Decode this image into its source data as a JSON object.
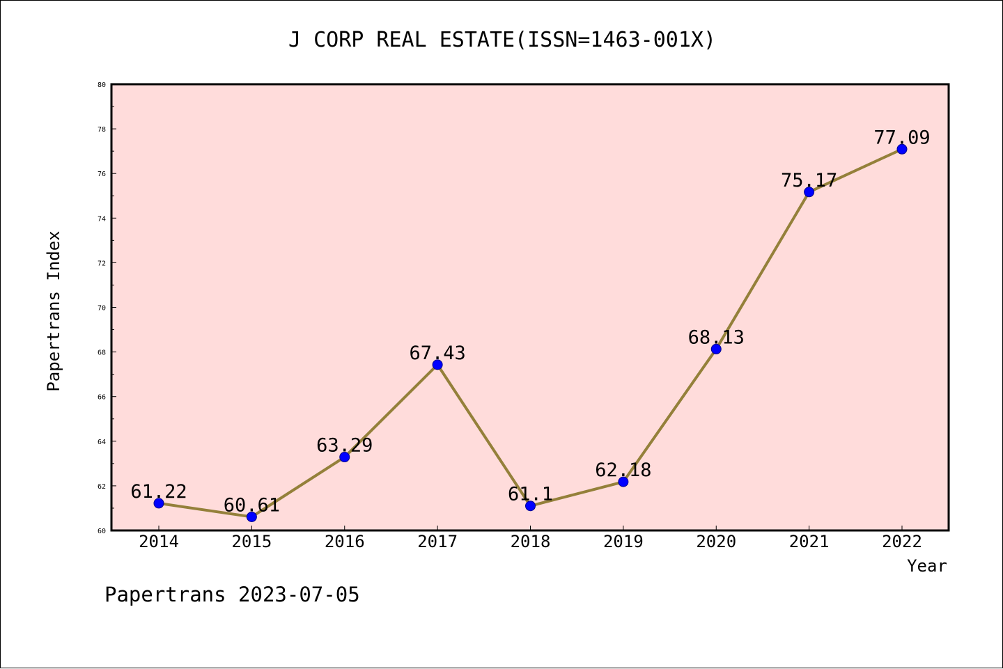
{
  "chart_data": {
    "type": "line",
    "title": "J CORP REAL ESTATE(ISSN=1463-001X)",
    "xlabel": "Year",
    "ylabel": "Papertrans Index",
    "categories": [
      "2014",
      "2015",
      "2016",
      "2017",
      "2018",
      "2019",
      "2020",
      "2021",
      "2022"
    ],
    "series": [
      {
        "values": [
          61.22,
          60.61,
          63.29,
          67.43,
          61.1,
          62.18,
          68.13,
          75.17,
          77.09
        ],
        "data_labels": [
          "61.22",
          "60.61",
          "63.29",
          "67.43",
          "61.1",
          "62.18",
          "68.13",
          "75.17",
          "77.09"
        ]
      }
    ],
    "ylim": [
      60,
      80
    ],
    "yticks": [
      "60",
      "62",
      "64",
      "66",
      "68",
      "70",
      "72",
      "74",
      "76",
      "78",
      "80"
    ],
    "grid": false,
    "legend": "none",
    "colors": {
      "plot_background": "#FFDCDB",
      "line": "#94803A",
      "marker": "#0000FF",
      "marker_edge": "#00008B"
    }
  },
  "footer": "Papertrans 2023-07-05"
}
